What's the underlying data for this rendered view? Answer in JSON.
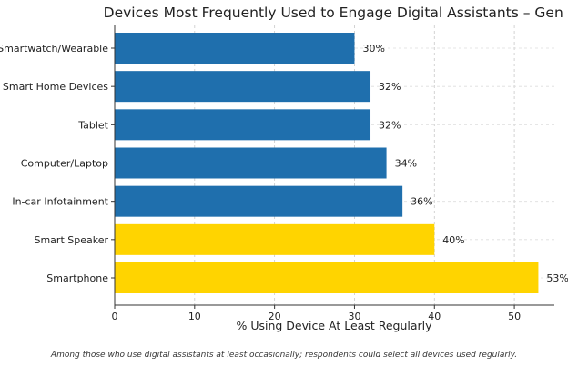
{
  "chart_data": {
    "type": "bar",
    "orientation": "horizontal",
    "title": "Devices Most Frequently Used to Engage Digital Assistants – Gen Z",
    "xlabel": "% Using Device At Least Regularly",
    "ylabel": "",
    "categories": [
      "Smartwatch/Wearable",
      "Smart Home Devices",
      "Tablet",
      "Computer/Laptop",
      "In-car Infotainment",
      "Smart Speaker",
      "Smartphone"
    ],
    "values": [
      30,
      32,
      32,
      34,
      36,
      40,
      53
    ],
    "value_labels": [
      "30%",
      "32%",
      "32%",
      "34%",
      "36%",
      "40%",
      "53%"
    ],
    "highlighted": [
      false,
      false,
      false,
      false,
      false,
      true,
      true
    ],
    "colors": {
      "default": "#1f6fad",
      "highlight": "#ffd400"
    },
    "xlim": [
      0,
      55
    ],
    "xticks": [
      0,
      10,
      20,
      30,
      40,
      50
    ],
    "grid": true,
    "footnote": "Among those who use digital assistants at least occasionally; respondents could select all devices used regularly."
  }
}
